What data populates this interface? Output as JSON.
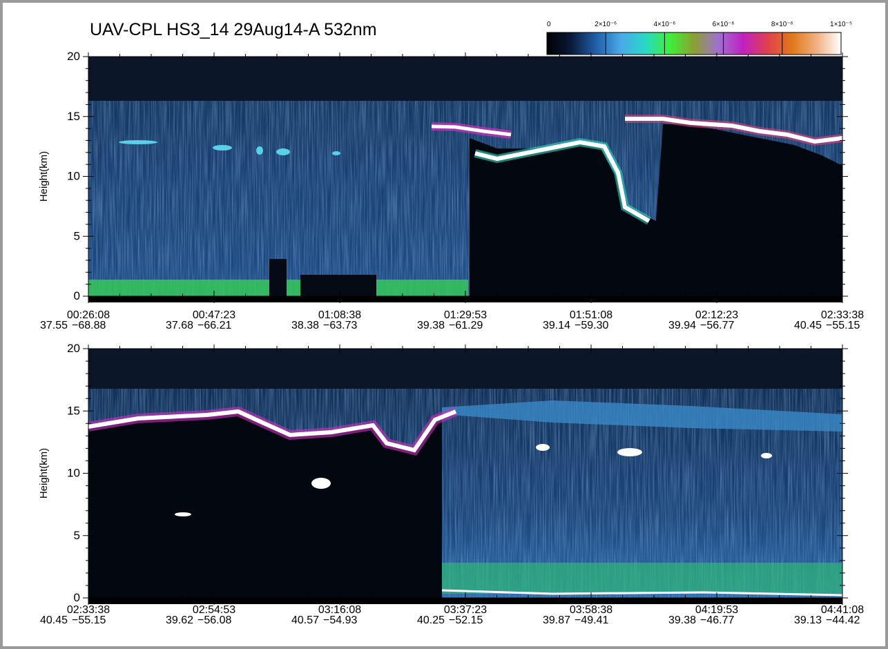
{
  "chart_data": [
    {
      "type": "heatmap",
      "title": "UAV-CPL HS3_14 29Aug14-A 532nm",
      "y_label": "Height(km)",
      "ylim": [
        0,
        20
      ],
      "yticks": [
        0,
        5,
        10,
        15,
        20
      ],
      "x_ticks": [
        {
          "time": "00:26:08",
          "lat": "37.55",
          "lon": "−68.88"
        },
        {
          "time": "00:47:23",
          "lat": "37.68",
          "lon": "−66.21"
        },
        {
          "time": "01:08:38",
          "lat": "38.38",
          "lon": "−63.73"
        },
        {
          "time": "01:29:53",
          "lat": "39.38",
          "lon": "−61.29"
        },
        {
          "time": "01:51:08",
          "lat": "39.14",
          "lon": "−59.30"
        },
        {
          "time": "02:12:23",
          "lat": "39.94",
          "lon": "−56.77"
        },
        {
          "time": "02:33:38",
          "lat": "40.45",
          "lon": "−55.15"
        }
      ],
      "colorbar": {
        "lim": [
          0,
          1e-05
        ],
        "ticks": [
          0,
          {
            "value": 2e-06,
            "label": "2×10⁻⁶"
          },
          {
            "value": 4e-06,
            "label": "4×10⁻⁶"
          },
          {
            "value": 6e-06,
            "label": "6×10⁻⁶"
          },
          {
            "value": 8e-06,
            "label": "8×10⁻⁶"
          },
          {
            "value": 1e-05,
            "label": "1×10⁻⁵"
          }
        ],
        "colors": [
          "#000000",
          "#0a1a3a",
          "#1f5fa8",
          "#4aa8e8",
          "#28d8c8",
          "#3ef03a",
          "#8aa030",
          "#a070d0",
          "#c020c0",
          "#e04050",
          "#e07818",
          "#f0b080",
          "#ffffff"
        ]
      }
    },
    {
      "type": "heatmap",
      "y_label": "Height(km)",
      "ylim": [
        0,
        20
      ],
      "yticks": [
        0,
        5,
        10,
        15,
        20
      ],
      "x_ticks": [
        {
          "time": "02:33:38",
          "lat": "40.45",
          "lon": "−55.15"
        },
        {
          "time": "02:54:53",
          "lat": "39.62",
          "lon": "−56.08"
        },
        {
          "time": "03:16:08",
          "lat": "40.57",
          "lon": "−54.93"
        },
        {
          "time": "03:37:23",
          "lat": "40.25",
          "lon": "−52.15"
        },
        {
          "time": "03:58:38",
          "lat": "39.87",
          "lon": "−49.41"
        },
        {
          "time": "04:19:53",
          "lat": "39.38",
          "lon": "−46.77"
        },
        {
          "time": "04:41:08",
          "lat": "39.13",
          "lon": "−44.42"
        }
      ]
    }
  ]
}
